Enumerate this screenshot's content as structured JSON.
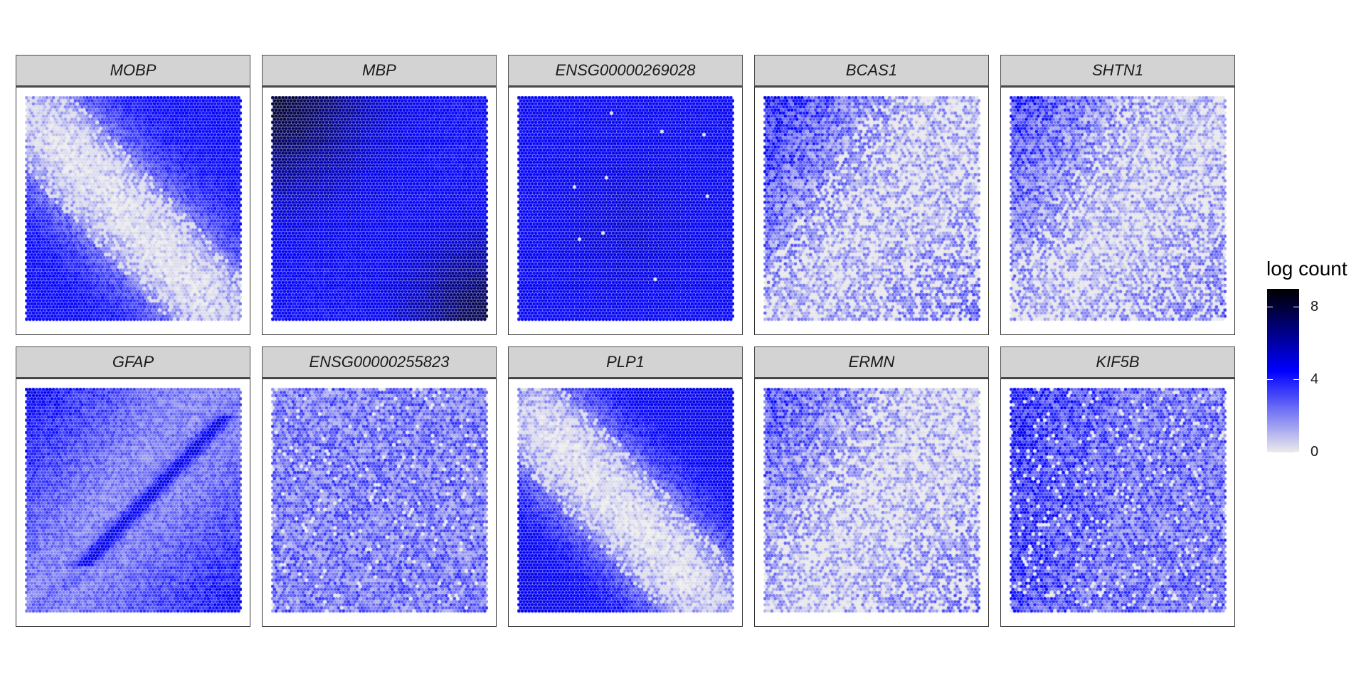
{
  "chart_data": {
    "type": "heatmap",
    "title": "",
    "xlabel": "",
    "ylabel": "",
    "facets": [
      {
        "label": "MOBP",
        "pattern": "white_band_high_corners",
        "level": 4.5
      },
      {
        "label": "MBP",
        "pattern": "dark_corners_high_overall",
        "level": 6.5
      },
      {
        "label": "ENSG00000269028",
        "pattern": "uniform_high",
        "level": 4.6
      },
      {
        "label": "BCAS1",
        "pattern": "upper_left_high_low_elsewhere",
        "level": 3.2
      },
      {
        "label": "SHTN1",
        "pattern": "upper_left_high_low_elsewhere",
        "level": 2.8
      },
      {
        "label": "GFAP",
        "pattern": "diagonal_stripe_high",
        "level": 4.3
      },
      {
        "label": "ENSG00000255823",
        "pattern": "uniform_moderate",
        "level": 2.4
      },
      {
        "label": "PLP1",
        "pattern": "white_band_high_corners",
        "level": 4.8
      },
      {
        "label": "ERMN",
        "pattern": "upper_left_high_low_elsewhere",
        "level": 2.5
      },
      {
        "label": "KIF5B",
        "pattern": "uniform_moderate_left_bias",
        "level": 2.6
      }
    ],
    "legend": {
      "title": "log count",
      "ticks": [
        0,
        4,
        8
      ],
      "range": [
        0,
        9
      ],
      "colors": [
        "#ebebeb",
        "#0000ff",
        "#000000"
      ],
      "placement": "right"
    }
  }
}
